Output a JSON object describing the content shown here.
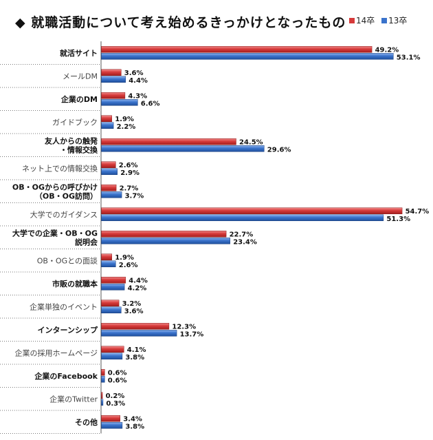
{
  "title": "◆ 就職活動について考え始めるきっかけとなったもの",
  "colors": {
    "series_14": "#d63a3a",
    "series_13": "#3a73cc"
  },
  "chart_data": {
    "type": "bar",
    "orientation": "horizontal",
    "title": "◆ 就職活動について考え始めるきっかけとなったもの",
    "legend_position": "top-right",
    "value_format": "percent",
    "categories": [
      [
        "就活サイト"
      ],
      [
        "メールDM"
      ],
      [
        "企業のDM"
      ],
      [
        "ガイドブック"
      ],
      [
        "友人からの触発",
        "・情報交換"
      ],
      [
        "ネット上での情報交換"
      ],
      [
        "OB・OGからの呼びかけ",
        "（OB・OG訪問）"
      ],
      [
        "大学でのガイダンス"
      ],
      [
        "大学での企業・OB・OG",
        "説明会"
      ],
      [
        "OB・OGとの面談"
      ],
      [
        "市販の就職本"
      ],
      [
        "企業単独のイベント"
      ],
      [
        "インターンシップ"
      ],
      [
        "企業の採用ホームページ"
      ],
      [
        "企業のFacebook"
      ],
      [
        "企業のTwitter"
      ],
      [
        "その他"
      ]
    ],
    "bold_categories": [
      true,
      false,
      true,
      false,
      true,
      false,
      true,
      false,
      true,
      false,
      true,
      false,
      true,
      false,
      true,
      false,
      true
    ],
    "series": [
      {
        "name": "14卒",
        "color": "#d63a3a",
        "values": [
          49.2,
          3.6,
          4.3,
          1.9,
          24.5,
          2.6,
          2.7,
          54.7,
          22.7,
          1.9,
          4.4,
          3.2,
          12.3,
          4.1,
          0.6,
          0.2,
          3.4
        ]
      },
      {
        "name": "13卒",
        "color": "#3a73cc",
        "values": [
          53.1,
          4.4,
          6.6,
          2.2,
          29.6,
          2.9,
          3.7,
          51.3,
          23.4,
          2.6,
          4.2,
          3.6,
          13.7,
          3.8,
          0.6,
          0.3,
          3.8
        ]
      }
    ],
    "xlim": [
      0,
      60
    ]
  }
}
